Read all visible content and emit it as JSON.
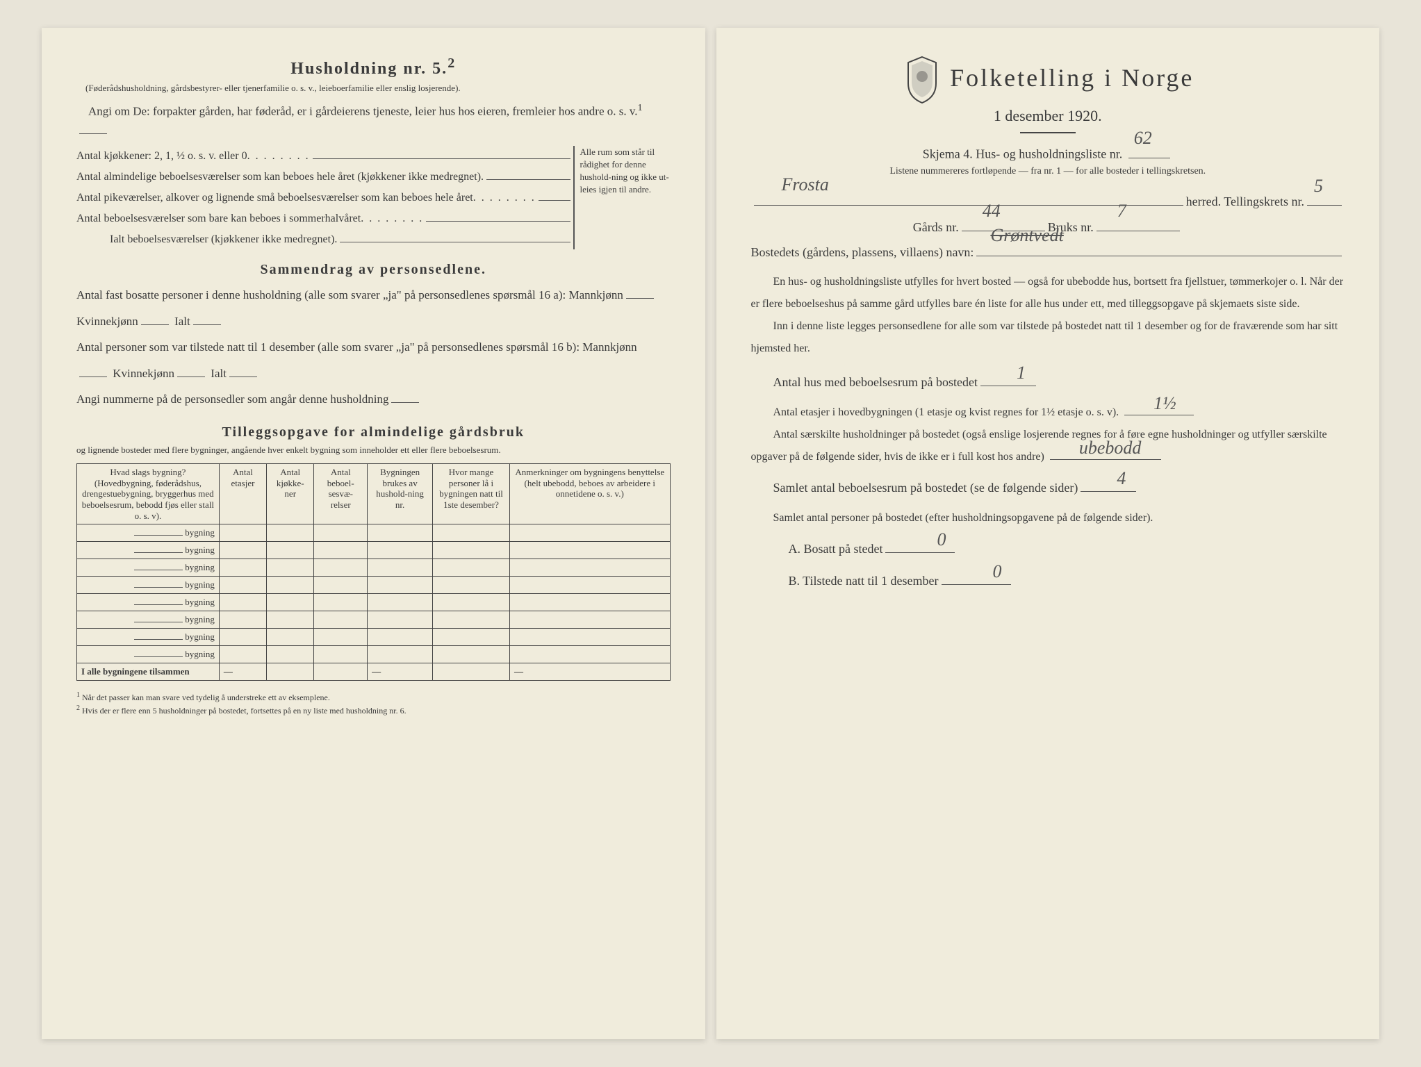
{
  "left": {
    "title": "Husholdning nr. 5.",
    "title_sup": "2",
    "sub1": "(Føderådshusholdning, gårdsbestyrer- eller tjenerfamilie o. s. v., leieboerfamilie eller enslig losjerende).",
    "sub2": "Angi om De: forpakter gården, har føderåd, er i gårdeierens tjeneste, leier hus hos eieren, fremleier hos andre o. s. v.",
    "sup1": "1",
    "q_kjokken": "Antal kjøkkener: 2, 1, ½ o. s. v. eller 0",
    "q_alm": "Antal almindelige beboelsesværelser som kan beboes hele året (kjøkkener ikke medregnet).",
    "q_pike": "Antal pikeværelser, alkover og lignende små beboelsesværelser som kan beboes hele året",
    "q_sommer": "Antal beboelsesværelser som bare kan beboes i sommerhalvåret",
    "q_total": "Ialt beboelsesværelser (kjøkkener ikke medregnet).",
    "brace_note": "Alle rum som står til rådighet for denne hushold-ning og ikke ut-leies igjen til andre.",
    "sammendrag_title": "Sammendrag av personsedlene.",
    "s1": "Antal fast bosatte personer i denne husholdning (alle som svarer „ja\" på personsedlenes spørsmål 16 a): Mannkjønn",
    "s1b": "Kvinnekjønn",
    "s1c": "Ialt",
    "s2": "Antal personer som var tilstede natt til 1 desember (alle som svarer „ja\" på personsedlenes spørsmål 16 b): Mannkjønn",
    "s3": "Angi nummerne på de personsedler som angår denne husholdning",
    "tillegg_title": "Tilleggsopgave for almindelige gårdsbruk",
    "tillegg_sub": "og lignende bosteder med flere bygninger, angående hver enkelt bygning som inneholder ett eller flere beboelsesrum.",
    "table": {
      "headers": [
        "Hvad slags bygning?\n(Hovedbygning, føderådshus, drengestuebygning, bryggerhus med beboelsesrum, bebodd fjøs eller stall o. s. v).",
        "Antal etasjer",
        "Antal kjøkke-ner",
        "Antal beboel-sesvæ-relser",
        "Bygningen brukes av hushold-ning nr.",
        "Hvor mange personer lå i bygningen natt til 1ste desember?",
        "Anmerkninger om bygningens benyttelse (helt ubebodd, beboes av arbeidere i onnetidene o. s. v.)"
      ],
      "bygning_label": "bygning",
      "sum_label": "I alle bygningene tilsammen",
      "dash": "—"
    },
    "footnote1": "Når det passer kan man svare ved tydelig å understreke ett av eksemplene.",
    "footnote2": "Hvis der er flere enn 5 husholdninger på bostedet, fortsettes på en ny liste med husholdning nr. 6."
  },
  "right": {
    "title": "Folketelling i Norge",
    "date": "1 desember 1920.",
    "skjema_label": "Skjema 4.  Hus- og husholdningsliste nr.",
    "skjema_nr": "62",
    "listene": "Listene nummereres fortløpende — fra nr. 1 — for alle bosteder i tellingskretsen.",
    "herred_val": "Frosta",
    "herred_label": "herred.   Tellingskrets nr.",
    "tellingskrets": "5",
    "gards_label": "Gårds nr.",
    "gards_val": "44",
    "bruks_label": "Bruks nr.",
    "bruks_val": "7",
    "bosted_label": "Bostedets (gårdens, plassens, villaens) navn:",
    "bosted_val": "Grøntvedt",
    "para1": "En hus- og husholdningsliste utfylles for hvert bosted — også for ubebodde hus, bortsett fra fjellstuer, tømmerkojer o. l.  Når der er flere beboelseshus på samme gård utfylles bare én liste for alle hus under ett, med tilleggsopgave på skjemaets siste side.",
    "para2": "Inn i denne liste legges personsedlene for alle som var tilstede på bostedet natt til 1 desember og for de fraværende som har sitt hjemsted her.",
    "q_hus": "Antal hus med beboelsesrum på bostedet",
    "q_hus_val": "1",
    "q_etasjer": "Antal etasjer i hovedbygningen (1 etasje og kvist regnes for 1½ etasje o. s. v).",
    "q_etasjer_val": "1½",
    "q_hush": "Antal særskilte husholdninger på bostedet (også enslige losjerende regnes for å føre egne husholdninger og utfyller særskilte opgaver på de følgende sider, hvis de ikke er i full kost hos andre)",
    "q_hush_val": "ubebodd",
    "q_samlet_rum": "Samlet antal beboelsesrum på bostedet (se de følgende sider)",
    "q_samlet_rum_val": "4",
    "q_samlet_pers": "Samlet antal personer på bostedet (efter husholdningsopgavene på de følgende sider).",
    "q_a": "A.  Bosatt på stedet",
    "q_a_val": "0",
    "q_b": "B.  Tilstede natt til 1 desember",
    "q_b_val": "0"
  }
}
